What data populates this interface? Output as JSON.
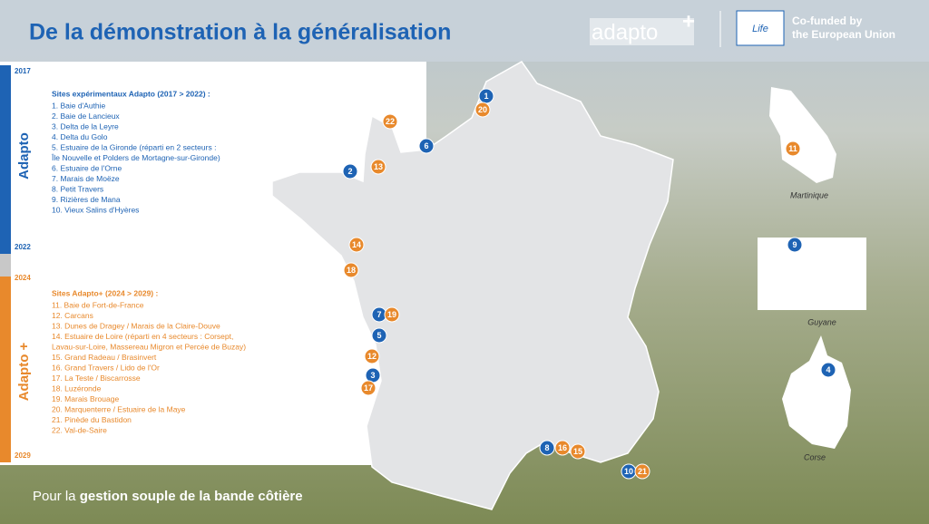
{
  "header": {
    "title": "De la démonstration à la généralisation",
    "logo": "adapto",
    "logo_plus": "+",
    "life": "Life",
    "eu_lines": [
      "Co-funded by",
      "the European Union"
    ]
  },
  "timeline": {
    "years": [
      "2017",
      "2022",
      "2024",
      "2029"
    ],
    "phases": [
      "Adapto",
      "Adapto +"
    ],
    "colors": [
      "#1e63b4",
      "#e8892c"
    ]
  },
  "sections": [
    {
      "title": "Sites expérimentaux Adapto (2017 > 2022) :",
      "color": "#1e63b4",
      "lines": [
        "1. Baie d'Authie",
        "2. Baie de Lancieux",
        "3. Delta de la Leyre",
        "4. Delta du Golo",
        "5.  Estuaire de la Gironde (réparti en 2 secteurs :",
        "Île Nouvelle et Polders de Mortagne-sur-Gironde)",
        "6. Estuaire de l'Orne",
        "7. Marais de Moëze",
        "8. Petit Travers",
        "9. Rizières de Mana",
        "10. Vieux Salins d'Hyères"
      ]
    },
    {
      "title": "Sites Adapto+ (2024 > 2029) :",
      "color": "#e8892c",
      "lines": [
        "11. Baie de Fort-de-France",
        "12. Carcans",
        "13. Dunes de Dragey / Marais de la Claire-Douve",
        "14. Estuaire de Loire (réparti en 4 secteurs : Corsept,",
        "Lavau-sur-Loire, Massereau Migron et Percée de Buzay)",
        "15. Grand Radeau / Brasinvert",
        "16. Grand Travers / Lido de l'Or",
        "17. La Teste / Biscarrosse",
        "18. Luzéronde",
        "19. Marais Brouage",
        "20. Marquenterre / Estuaire de la Maye",
        "21. Pinède du Bastidon",
        "22. Val-de-Saire"
      ]
    }
  ],
  "markers": [
    {
      "label": "1",
      "color": "#1e63b4"
    },
    {
      "label": "20",
      "color": "#e8892c"
    },
    {
      "label": "22",
      "color": "#e8892c"
    },
    {
      "label": "6",
      "color": "#1e63b4"
    },
    {
      "label": "2",
      "color": "#1e63b4"
    },
    {
      "label": "13",
      "color": "#e8892c"
    },
    {
      "label": "14",
      "color": "#e8892c"
    },
    {
      "label": "18",
      "color": "#e8892c"
    },
    {
      "label": "7",
      "color": "#1e63b4"
    },
    {
      "label": "19",
      "color": "#e8892c"
    },
    {
      "label": "5",
      "color": "#1e63b4"
    },
    {
      "label": "12",
      "color": "#e8892c"
    },
    {
      "label": "3",
      "color": "#1e63b4"
    },
    {
      "label": "17",
      "color": "#e8892c"
    },
    {
      "label": "8",
      "color": "#1e63b4"
    },
    {
      "label": "16",
      "color": "#e8892c"
    },
    {
      "label": "15",
      "color": "#e8892c"
    },
    {
      "label": "10",
      "color": "#1e63b4"
    },
    {
      "label": "21",
      "color": "#e8892c"
    },
    {
      "label": "11",
      "color": "#e8892c"
    },
    {
      "label": "9",
      "color": "#1e63b4"
    },
    {
      "label": "4",
      "color": "#1e63b4"
    }
  ],
  "insets": [
    "Martinique",
    "Guyane",
    "Corse"
  ],
  "footer": {
    "lead": "Pour la ",
    "bold": "gestion souple de la bande côtière"
  }
}
